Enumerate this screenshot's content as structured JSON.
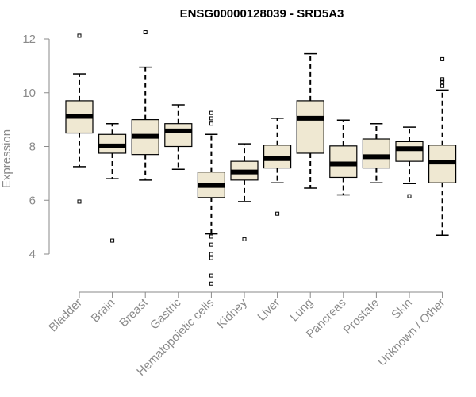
{
  "chart_data": {
    "type": "box",
    "title": "ENSG00000128039 - SRD5A3",
    "ylabel": "Expression",
    "xlabel": "",
    "ylim": [
      3.7,
      12.4
    ],
    "yticks": [
      4,
      6,
      8,
      10,
      12
    ],
    "box_fill": "#efe8d2",
    "box_stroke": "#000000",
    "median_color": "#000000",
    "axis_label_color": "#8a8a8a",
    "categories": [
      {
        "label": "Bladder",
        "whisker_low": 7.25,
        "q1": 8.5,
        "median": 9.12,
        "q3": 9.7,
        "whisker_high": 10.7,
        "outliers": [
          12.12,
          5.95
        ]
      },
      {
        "label": "Brain",
        "whisker_low": 6.8,
        "q1": 7.75,
        "median": 8.02,
        "q3": 8.45,
        "whisker_high": 8.85,
        "outliers": [
          4.5
        ]
      },
      {
        "label": "Breast",
        "whisker_low": 6.75,
        "q1": 7.7,
        "median": 8.38,
        "q3": 9.0,
        "whisker_high": 10.95,
        "outliers": [
          12.25
        ]
      },
      {
        "label": "Gastric",
        "whisker_low": 7.15,
        "q1": 8.0,
        "median": 8.58,
        "q3": 8.85,
        "whisker_high": 9.55,
        "outliers": []
      },
      {
        "label": "Hematopoietic cells",
        "whisker_low": 4.75,
        "q1": 6.1,
        "median": 6.55,
        "q3": 7.05,
        "whisker_high": 8.45,
        "outliers": [
          9.25,
          9.05,
          8.85,
          4.65,
          4.35,
          4.0,
          3.85,
          3.2,
          2.9
        ]
      },
      {
        "label": "Kidney",
        "whisker_low": 5.95,
        "q1": 6.75,
        "median": 7.05,
        "q3": 7.45,
        "whisker_high": 8.1,
        "outliers": [
          4.55
        ]
      },
      {
        "label": "Liver",
        "whisker_low": 6.65,
        "q1": 7.2,
        "median": 7.55,
        "q3": 8.05,
        "whisker_high": 9.05,
        "outliers": [
          5.5
        ]
      },
      {
        "label": "Lung",
        "whisker_low": 6.45,
        "q1": 7.75,
        "median": 9.05,
        "q3": 9.7,
        "whisker_high": 11.45,
        "outliers": []
      },
      {
        "label": "Pancreas",
        "whisker_low": 6.2,
        "q1": 6.85,
        "median": 7.35,
        "q3": 8.02,
        "whisker_high": 8.98,
        "outliers": []
      },
      {
        "label": "Prostate",
        "whisker_low": 6.65,
        "q1": 7.2,
        "median": 7.62,
        "q3": 8.28,
        "whisker_high": 8.85,
        "outliers": []
      },
      {
        "label": "Skin",
        "whisker_low": 6.62,
        "q1": 7.45,
        "median": 7.92,
        "q3": 8.18,
        "whisker_high": 8.72,
        "outliers": [
          6.15
        ]
      },
      {
        "label": "Unknown / Other",
        "whisker_low": 4.7,
        "q1": 6.65,
        "median": 7.42,
        "q3": 8.05,
        "whisker_high": 10.1,
        "outliers": [
          11.25,
          10.5,
          10.4,
          10.25
        ]
      }
    ]
  }
}
